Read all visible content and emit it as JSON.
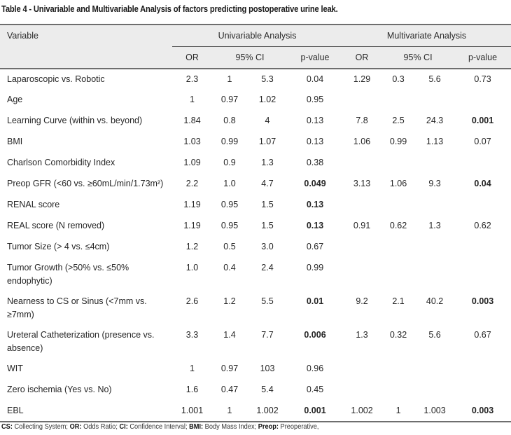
{
  "caption": "Table 4 - Univariable and Multivariable Analysis of factors predicting postoperative urine leak.",
  "header": {
    "variable": "Variable",
    "univariable_group": "Univariable Analysis",
    "multivariate_group": "Multivariate Analysis",
    "subcolumns": [
      "OR",
      "95% CI",
      "p-value",
      "OR",
      "95% CI",
      "p-value"
    ]
  },
  "rows": [
    {
      "variable": "Laparoscopic vs. Robotic",
      "u_or": "2.3",
      "u_lo": "1",
      "u_hi": "5.3",
      "u_p": "0.04",
      "u_p_bold": false,
      "m_or": "1.29",
      "m_lo": "0.3",
      "m_hi": "5.6",
      "m_p": "0.73",
      "m_p_bold": false
    },
    {
      "variable": "Age",
      "u_or": "1",
      "u_lo": "0.97",
      "u_hi": "1.02",
      "u_p": "0.95",
      "u_p_bold": false,
      "m_or": "",
      "m_lo": "",
      "m_hi": "",
      "m_p": "",
      "m_p_bold": false
    },
    {
      "variable": "Learning Curve (within vs. beyond)",
      "u_or": "1.84",
      "u_lo": "0.8",
      "u_hi": "4",
      "u_p": "0.13",
      "u_p_bold": false,
      "m_or": "7.8",
      "m_lo": "2.5",
      "m_hi": "24.3",
      "m_p": "0.001",
      "m_p_bold": true
    },
    {
      "variable": "BMI",
      "u_or": "1.03",
      "u_lo": "0.99",
      "u_hi": "1.07",
      "u_p": "0.13",
      "u_p_bold": false,
      "m_or": "1.06",
      "m_lo": "0.99",
      "m_hi": "1.13",
      "m_p": "0.07",
      "m_p_bold": false
    },
    {
      "variable": "Charlson Comorbidity Index",
      "u_or": "1.09",
      "u_lo": "0.9",
      "u_hi": "1.3",
      "u_p": "0.38",
      "u_p_bold": false,
      "m_or": "",
      "m_lo": "",
      "m_hi": "",
      "m_p": "",
      "m_p_bold": false
    },
    {
      "variable": "Preop GFR (<60 vs. ≥60mL/min/1.73m²)",
      "u_or": "2.2",
      "u_lo": "1.0",
      "u_hi": "4.7",
      "u_p": "0.049",
      "u_p_bold": true,
      "m_or": "3.13",
      "m_lo": "1.06",
      "m_hi": "9.3",
      "m_p": "0.04",
      "m_p_bold": true
    },
    {
      "variable": "RENAL score",
      "u_or": "1.19",
      "u_lo": "0.95",
      "u_hi": "1.5",
      "u_p": "0.13",
      "u_p_bold": true,
      "m_or": "",
      "m_lo": "",
      "m_hi": "",
      "m_p": "",
      "m_p_bold": false
    },
    {
      "variable": "REAL score (N removed)",
      "u_or": "1.19",
      "u_lo": "0.95",
      "u_hi": "1.5",
      "u_p": "0.13",
      "u_p_bold": true,
      "m_or": "0.91",
      "m_lo": "0.62",
      "m_hi": "1.3",
      "m_p": "0.62",
      "m_p_bold": false
    },
    {
      "variable": "Tumor Size (> 4 vs. ≤4cm)",
      "u_or": "1.2",
      "u_lo": "0.5",
      "u_hi": "3.0",
      "u_p": "0.67",
      "u_p_bold": false,
      "m_or": "",
      "m_lo": "",
      "m_hi": "",
      "m_p": "",
      "m_p_bold": false
    },
    {
      "variable": "Tumor Growth (>50% vs. ≤50% endophytic)",
      "u_or": "1.0",
      "u_lo": "0.4",
      "u_hi": "2.4",
      "u_p": "0.99",
      "u_p_bold": false,
      "m_or": "",
      "m_lo": "",
      "m_hi": "",
      "m_p": "",
      "m_p_bold": false,
      "tall": true
    },
    {
      "variable": "Nearness to CS or Sinus (<7mm vs. ≥7mm)",
      "u_or": "2.6",
      "u_lo": "1.2",
      "u_hi": "5.5",
      "u_p": "0.01",
      "u_p_bold": true,
      "m_or": "9.2",
      "m_lo": "2.1",
      "m_hi": "40.2",
      "m_p": "0.003",
      "m_p_bold": true,
      "tall": true
    },
    {
      "variable": "Ureteral Catheterization (presence vs. absence)",
      "u_or": "3.3",
      "u_lo": "1.4",
      "u_hi": "7.7",
      "u_p": "0.006",
      "u_p_bold": true,
      "m_or": "1.3",
      "m_lo": "0.32",
      "m_hi": "5.6",
      "m_p": "0.67",
      "m_p_bold": false,
      "tall": true
    },
    {
      "variable": "WIT",
      "u_or": "1",
      "u_lo": "0.97",
      "u_hi": "103",
      "u_p": "0.96",
      "u_p_bold": false,
      "m_or": "",
      "m_lo": "",
      "m_hi": "",
      "m_p": "",
      "m_p_bold": false
    },
    {
      "variable": "Zero ischemia (Yes vs. No)",
      "u_or": "1.6",
      "u_lo": "0.47",
      "u_hi": "5.4",
      "u_p": "0.45",
      "u_p_bold": false,
      "m_or": "",
      "m_lo": "",
      "m_hi": "",
      "m_p": "",
      "m_p_bold": false
    },
    {
      "variable": "EBL",
      "u_or": "1.001",
      "u_lo": "1",
      "u_hi": "1.002",
      "u_p": "0.001",
      "u_p_bold": true,
      "m_or": "1.002",
      "m_lo": "1",
      "m_hi": "1.003",
      "m_p": "0.003",
      "m_p_bold": true
    }
  ],
  "footnote": [
    {
      "term": "CS:",
      "definition": " Collecting System; "
    },
    {
      "term": "OR:",
      "definition": " Odds Ratio; "
    },
    {
      "term": "CI:",
      "definition": " Confidence Interval; "
    },
    {
      "term": "BMI:",
      "definition": " Body Mass Index; "
    },
    {
      "term": "Preop:",
      "definition": " Preoperative,"
    }
  ]
}
